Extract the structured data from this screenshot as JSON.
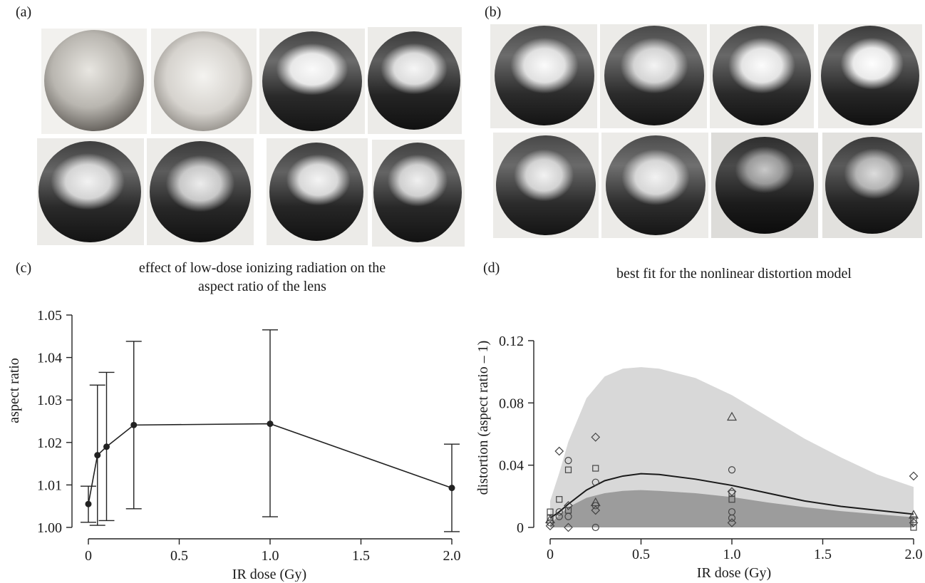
{
  "panels": {
    "a": {
      "label": "(a)"
    },
    "b": {
      "label": "(b)"
    },
    "c": {
      "label": "(c)"
    },
    "d": {
      "label": "(d)"
    }
  },
  "chart_data": [
    {
      "panel": "c",
      "type": "line",
      "title_lines": [
        "effect of low-dose ionizing radiation on the",
        "aspect ratio of the lens"
      ],
      "xlabel": "IR dose (Gy)",
      "ylabel": "aspect ratio",
      "xlim": [
        0,
        2.0
      ],
      "ylim": [
        1.0,
        1.05
      ],
      "xticks": [
        "0",
        "0.5",
        "1.0",
        "1.5",
        "2.0"
      ],
      "yticks": [
        "1.00",
        "1.01",
        "1.02",
        "1.03",
        "1.04",
        "1.05"
      ],
      "x": [
        0,
        0.05,
        0.1,
        0.25,
        1.0,
        2.0
      ],
      "y": [
        1.0055,
        1.017,
        1.019,
        1.0241,
        1.0244,
        1.0093
      ],
      "error_low": [
        1.0012,
        1.0005,
        1.0016,
        1.0044,
        1.0025,
        0.999
      ],
      "error_high": [
        1.0097,
        1.0335,
        1.0365,
        1.0438,
        1.0465,
        1.0196
      ]
    },
    {
      "panel": "d",
      "type": "scatter",
      "title": "best fit for the nonlinear distortion model",
      "xlabel": "IR dose (Gy)",
      "ylabel": "distortion (aspect ratio – 1)",
      "xlim": [
        0,
        2.0
      ],
      "ylim": [
        0,
        0.12
      ],
      "xticks": [
        "0",
        "0.5",
        "1.0",
        "1.5",
        "2.0"
      ],
      "yticks": [
        "0",
        "0.04",
        "0.08",
        "0.12"
      ],
      "fit_curve": {
        "x": [
          0,
          0.05,
          0.1,
          0.2,
          0.3,
          0.4,
          0.5,
          0.6,
          0.8,
          1.0,
          1.2,
          1.4,
          1.6,
          1.8,
          2.0
        ],
        "y": [
          0.006,
          0.01,
          0.015,
          0.024,
          0.03,
          0.033,
          0.0345,
          0.034,
          0.031,
          0.027,
          0.022,
          0.017,
          0.0135,
          0.011,
          0.0085
        ]
      },
      "outer_band_upper": {
        "x": [
          0,
          0.05,
          0.1,
          0.2,
          0.3,
          0.4,
          0.5,
          0.6,
          0.8,
          1.0,
          1.2,
          1.4,
          1.6,
          1.8,
          2.0
        ],
        "y": [
          0.017,
          0.035,
          0.055,
          0.083,
          0.097,
          0.102,
          0.103,
          0.102,
          0.096,
          0.085,
          0.071,
          0.057,
          0.045,
          0.034,
          0.026
        ]
      },
      "inner_band_upper": {
        "x": [
          0,
          0.05,
          0.1,
          0.2,
          0.3,
          0.4,
          0.5,
          0.6,
          0.8,
          1.0,
          1.2,
          1.4,
          1.6,
          1.8,
          2.0
        ],
        "y": [
          0.002,
          0.008,
          0.013,
          0.019,
          0.022,
          0.0235,
          0.024,
          0.0235,
          0.022,
          0.0195,
          0.016,
          0.013,
          0.0105,
          0.0085,
          0.0065
        ]
      },
      "points": [
        {
          "x": 0,
          "y": 0.01,
          "marker": "square"
        },
        {
          "x": 0,
          "y": 0.006,
          "marker": "square"
        },
        {
          "x": 0,
          "y": 0.003,
          "marker": "circle"
        },
        {
          "x": 0,
          "y": 0.001,
          "marker": "diamond"
        },
        {
          "x": 0,
          "y": 0.005,
          "marker": "triangle"
        },
        {
          "x": 0.05,
          "y": 0.049,
          "marker": "diamond"
        },
        {
          "x": 0.05,
          "y": 0.018,
          "marker": "square"
        },
        {
          "x": 0.05,
          "y": 0.01,
          "marker": "circle"
        },
        {
          "x": 0.05,
          "y": 0.007,
          "marker": "circle"
        },
        {
          "x": 0.1,
          "y": 0.043,
          "marker": "circle"
        },
        {
          "x": 0.1,
          "y": 0.037,
          "marker": "square"
        },
        {
          "x": 0.1,
          "y": 0.014,
          "marker": "diamond"
        },
        {
          "x": 0.1,
          "y": 0.011,
          "marker": "square"
        },
        {
          "x": 0.1,
          "y": 0.007,
          "marker": "circle"
        },
        {
          "x": 0.1,
          "y": 0.0,
          "marker": "diamond"
        },
        {
          "x": 0.25,
          "y": 0.058,
          "marker": "diamond"
        },
        {
          "x": 0.25,
          "y": 0.038,
          "marker": "square"
        },
        {
          "x": 0.25,
          "y": 0.029,
          "marker": "circle"
        },
        {
          "x": 0.25,
          "y": 0.016,
          "marker": "triangle"
        },
        {
          "x": 0.25,
          "y": 0.014,
          "marker": "circle"
        },
        {
          "x": 0.25,
          "y": 0.011,
          "marker": "diamond"
        },
        {
          "x": 0.25,
          "y": 0.0,
          "marker": "circle"
        },
        {
          "x": 1.0,
          "y": 0.071,
          "marker": "triangle"
        },
        {
          "x": 1.0,
          "y": 0.037,
          "marker": "circle"
        },
        {
          "x": 1.0,
          "y": 0.023,
          "marker": "diamond"
        },
        {
          "x": 1.0,
          "y": 0.022,
          "marker": "square"
        },
        {
          "x": 1.0,
          "y": 0.018,
          "marker": "square"
        },
        {
          "x": 1.0,
          "y": 0.01,
          "marker": "circle"
        },
        {
          "x": 1.0,
          "y": 0.006,
          "marker": "circle"
        },
        {
          "x": 1.0,
          "y": 0.003,
          "marker": "diamond"
        },
        {
          "x": 2.0,
          "y": 0.033,
          "marker": "diamond"
        },
        {
          "x": 2.0,
          "y": 0.008,
          "marker": "triangle"
        },
        {
          "x": 2.0,
          "y": 0.005,
          "marker": "square"
        },
        {
          "x": 2.0,
          "y": 0.003,
          "marker": "diamond"
        },
        {
          "x": 2.0,
          "y": 0.0,
          "marker": "square"
        }
      ]
    }
  ]
}
